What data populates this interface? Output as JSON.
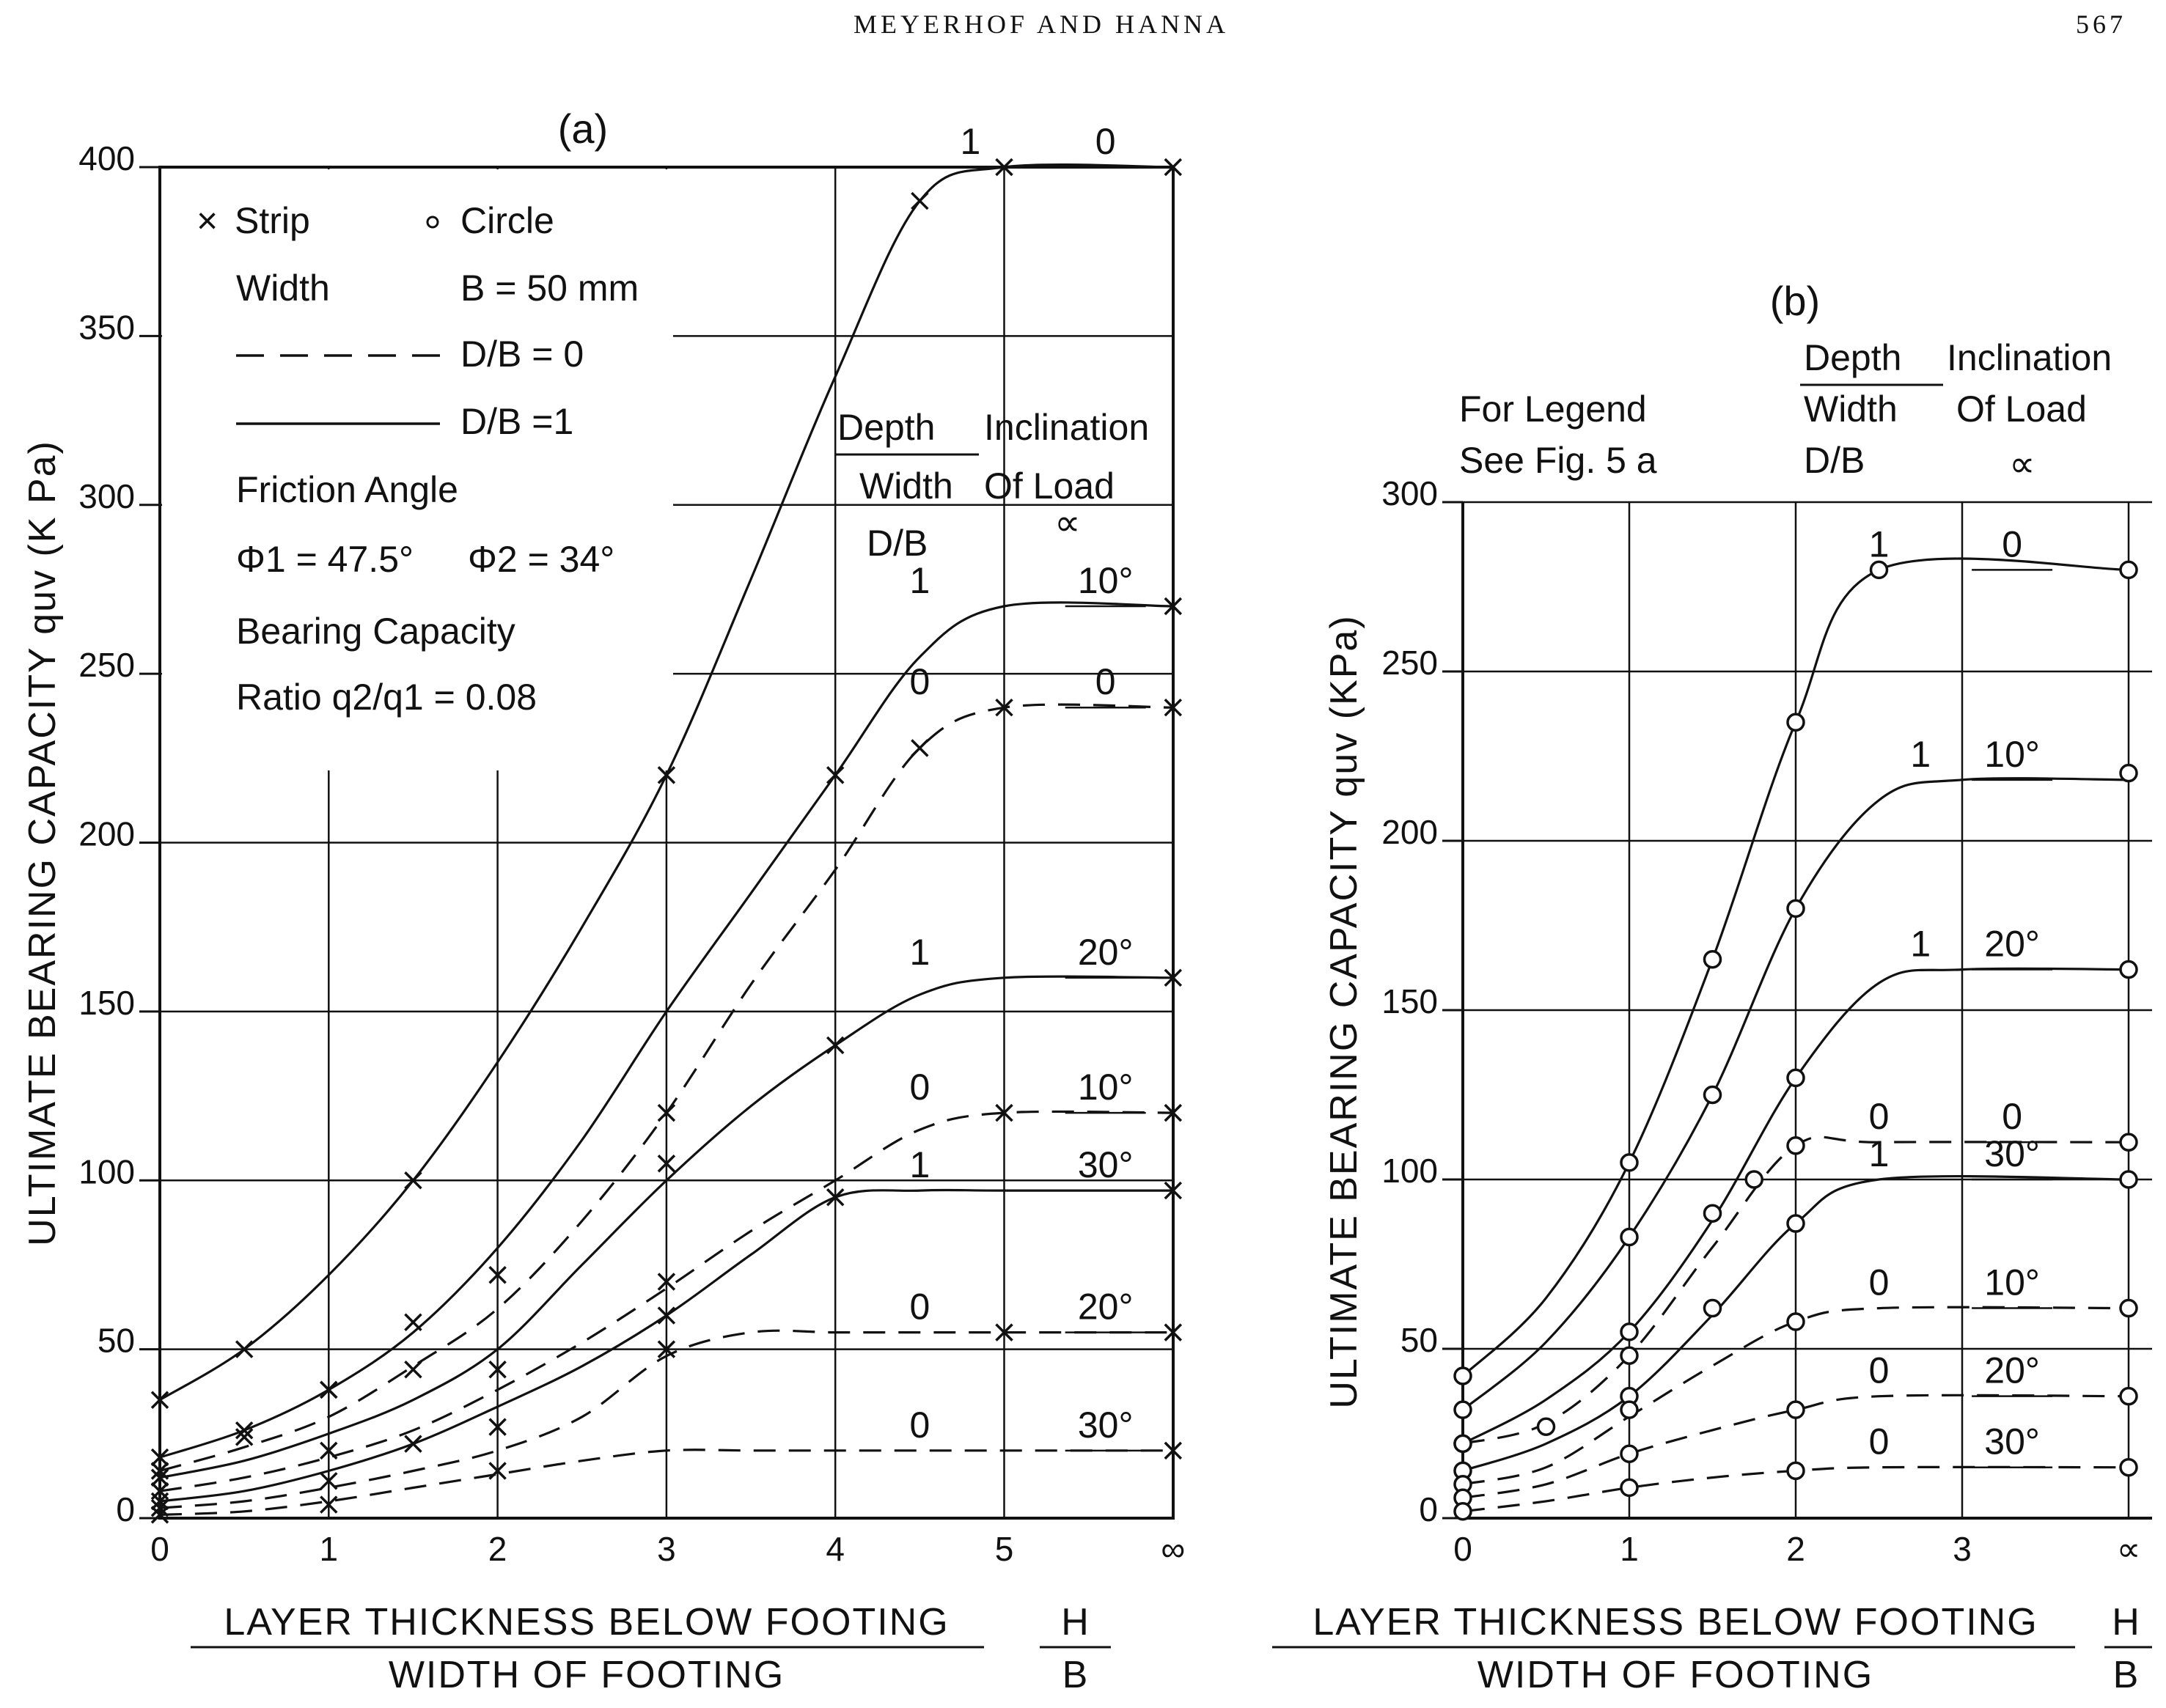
{
  "page_header": {
    "left": "MEYERHOF AND HANNA",
    "page_number": "567"
  },
  "chart_data": [
    {
      "type": "line",
      "panel_label": "(a)",
      "ylabel": "ULTIMATE  BEARING  CAPACITY  quv  (K Pa)",
      "xlabel_numerator": "LAYER  THICKNESS  BELOW  FOOTING",
      "xlabel_denominator": "WIDTH  OF  FOOTING",
      "xlabel_ratio_numerator": "H",
      "xlabel_ratio_denominator": "B",
      "x_ticks": [
        "0",
        "1",
        "2",
        "3",
        "4",
        "5",
        "∞"
      ],
      "y_ticks": [
        "0",
        "50",
        "100",
        "150",
        "200",
        "250",
        "300",
        "350",
        "400"
      ],
      "ylim": [
        0,
        400
      ],
      "legend": {
        "strip": "Strip",
        "circle": "Circle",
        "width_label": "Width",
        "width_value": "B = 50  mm",
        "dashed": "D/B = 0",
        "solid": "D/B =1",
        "friction_title": "Friction   Angle",
        "phi1": "Φ1 = 47.5°",
        "phi2": "Φ2 = 34°",
        "bc_title": "Bearing  Capacity",
        "bc_ratio": "Ratio  q2/q1 = 0.08"
      },
      "column_headers": {
        "depth": "Depth",
        "width": "Width",
        "db": "D/B",
        "inclination": "Inclination",
        "of_load": "Of  Load",
        "alpha": "∝"
      },
      "series": [
        {
          "db": "1",
          "alpha": "0°",
          "label_db": "1",
          "label_alpha": "0",
          "style": "solid",
          "x": [
            0,
            0.5,
            1,
            1.5,
            2,
            2.5,
            3,
            3.5,
            4,
            4.5,
            5,
            6
          ],
          "y": [
            35,
            50,
            72,
            100,
            135,
            175,
            220,
            278,
            338,
            390,
            400,
            400
          ],
          "markers_x": [
            0,
            0.5,
            1.5,
            3,
            4.5,
            5,
            6
          ],
          "markers_y": [
            35,
            50,
            100,
            220,
            390,
            400,
            400
          ]
        },
        {
          "db": "1",
          "alpha": "10°",
          "label_db": "1",
          "label_alpha": "10°",
          "style": "solid",
          "x": [
            0,
            0.5,
            1,
            1.5,
            2,
            2.5,
            3,
            3.5,
            4,
            4.5,
            5,
            6
          ],
          "y": [
            18,
            26,
            38,
            55,
            80,
            112,
            150,
            185,
            220,
            255,
            270,
            270
          ],
          "markers_x": [
            0,
            0.5,
            1,
            1.5,
            2,
            4,
            6
          ],
          "markers_y": [
            18,
            26,
            38,
            58,
            72,
            220,
            270
          ]
        },
        {
          "db": "0",
          "alpha": "0°",
          "label_db": "0",
          "label_alpha": "0",
          "style": "dashed",
          "x": [
            0,
            0.5,
            1,
            1.5,
            2,
            2.5,
            3,
            3.5,
            4,
            4.5,
            5,
            6
          ],
          "y": [
            14,
            21,
            30,
            45,
            62,
            88,
            120,
            158,
            192,
            228,
            240,
            240
          ],
          "markers_x": [
            0,
            0.5,
            1,
            1.5,
            2,
            3,
            4.5,
            5,
            6
          ],
          "markers_y": [
            14,
            24,
            38,
            44,
            44,
            120,
            228,
            240,
            240
          ]
        },
        {
          "db": "1",
          "alpha": "20°",
          "label_db": "1",
          "label_alpha": "20°",
          "style": "solid",
          "x": [
            0,
            0.5,
            1,
            1.5,
            2,
            2.5,
            3,
            3.5,
            4,
            4.5,
            5,
            6
          ],
          "y": [
            12,
            17,
            25,
            35,
            50,
            75,
            100,
            122,
            140,
            155,
            160,
            160
          ],
          "markers_x": [
            0,
            1,
            1.5,
            2,
            3,
            4,
            6
          ],
          "markers_y": [
            12,
            20,
            22,
            27,
            105,
            140,
            160
          ]
        },
        {
          "db": "0",
          "alpha": "10°",
          "label_db": "0",
          "label_alpha": "10°",
          "style": "dashed",
          "x": [
            0,
            0.5,
            1,
            1.5,
            2,
            2.5,
            3,
            3.5,
            4,
            4.5,
            5,
            6
          ],
          "y": [
            8,
            12,
            18,
            26,
            38,
            52,
            68,
            85,
            100,
            115,
            120,
            120
          ],
          "markers_x": [
            0,
            1,
            3,
            5,
            6
          ],
          "markers_y": [
            8,
            11,
            70,
            120,
            120
          ]
        },
        {
          "db": "1",
          "alpha": "30°",
          "label_db": "1",
          "label_alpha": "30°",
          "style": "solid",
          "x": [
            0,
            0.5,
            1,
            1.5,
            2,
            2.5,
            3,
            3.5,
            4,
            4.5,
            5,
            6
          ],
          "y": [
            5,
            8,
            14,
            22,
            33,
            45,
            60,
            78,
            95,
            97,
            97,
            97
          ],
          "markers_x": [
            0,
            1,
            2,
            3,
            4,
            6
          ],
          "markers_y": [
            5,
            4,
            14,
            60,
            95,
            97
          ]
        },
        {
          "db": "0",
          "alpha": "20°",
          "label_db": "0",
          "label_alpha": "20°",
          "style": "dashed",
          "x": [
            0,
            0.5,
            1,
            1.5,
            2,
            2.5,
            3,
            3.5,
            4,
            4.5,
            5,
            6
          ],
          "y": [
            3,
            5,
            9,
            14,
            20,
            30,
            48,
            55,
            55,
            55,
            55,
            55
          ],
          "markers_x": [
            0,
            3,
            5,
            6
          ],
          "markers_y": [
            3,
            50,
            55,
            55
          ]
        },
        {
          "db": "0",
          "alpha": "30°",
          "label_db": "0",
          "label_alpha": "30°",
          "style": "dashed",
          "x": [
            0,
            0.5,
            1,
            1.5,
            2,
            2.5,
            3,
            3.5,
            4,
            4.5,
            5,
            6
          ],
          "y": [
            1,
            2,
            5,
            9,
            13,
            17,
            20,
            20,
            20,
            20,
            20,
            20
          ],
          "markers_x": [
            0,
            6
          ],
          "markers_y": [
            1,
            20
          ]
        }
      ]
    },
    {
      "type": "line",
      "panel_label": "(b)",
      "ylabel": "ULTIMATE  BEARING  CAPACITY  quv  (KPa)",
      "xlabel_numerator": "LAYER  THICKNESS  BELOW  FOOTING",
      "xlabel_denominator": "WIDTH  OF  FOOTING",
      "xlabel_ratio_numerator": "H",
      "xlabel_ratio_denominator": "B",
      "x_ticks": [
        "0",
        "1",
        "2",
        "3",
        "∝"
      ],
      "y_ticks": [
        "0",
        "50",
        "100",
        "150",
        "200",
        "250",
        "300"
      ],
      "ylim": [
        0,
        300
      ],
      "legend_note_1": "For  Legend",
      "legend_note_2": "See  Fig. 5  a",
      "column_headers": {
        "depth": "Depth",
        "width": "Width",
        "db": "D/B",
        "inclination": "Inclination",
        "of_load": "Of  Load",
        "alpha": "∝"
      },
      "series": [
        {
          "db": "1",
          "alpha": "0°",
          "label_db": "1",
          "label_alpha": "0",
          "style": "solid",
          "x": [
            0,
            0.5,
            1,
            1.5,
            2,
            2.5,
            4
          ],
          "y": [
            42,
            65,
            105,
            165,
            235,
            280,
            280
          ],
          "markers_x": [
            0,
            1,
            1.5,
            2,
            2.5,
            4
          ],
          "markers_y": [
            42,
            105,
            165,
            235,
            280,
            280
          ]
        },
        {
          "db": "1",
          "alpha": "10°",
          "label_db": "1",
          "label_alpha": "10°",
          "style": "solid",
          "x": [
            0,
            0.5,
            1,
            1.5,
            2,
            2.5,
            3,
            4
          ],
          "y": [
            32,
            52,
            83,
            125,
            180,
            212,
            218,
            218
          ],
          "markers_x": [
            0,
            1,
            1.5,
            2,
            4
          ],
          "markers_y": [
            32,
            83,
            125,
            180,
            220
          ]
        },
        {
          "db": "1",
          "alpha": "20°",
          "label_db": "1",
          "label_alpha": "20°",
          "style": "solid",
          "x": [
            0,
            0.5,
            1,
            1.5,
            2,
            2.5,
            3,
            4
          ],
          "y": [
            22,
            35,
            55,
            88,
            130,
            158,
            162,
            162
          ],
          "markers_x": [
            0,
            1,
            1.5,
            2,
            4
          ],
          "markers_y": [
            22,
            55,
            90,
            130,
            162
          ]
        },
        {
          "db": "0",
          "alpha": "0°",
          "label_db": "0",
          "label_alpha": "0",
          "style": "dashed",
          "x": [
            0,
            0.5,
            1,
            1.5,
            2,
            2.5,
            4
          ],
          "y": [
            22,
            28,
            48,
            80,
            110,
            111,
            111
          ],
          "markers_x": [
            0,
            0.5,
            1,
            1.75,
            2,
            4
          ],
          "markers_y": [
            22,
            27,
            48,
            100,
            110,
            111
          ]
        },
        {
          "db": "1",
          "alpha": "30°",
          "label_db": "1",
          "label_alpha": "30°",
          "style": "solid",
          "x": [
            0,
            0.5,
            1,
            1.5,
            2,
            2.5,
            4
          ],
          "y": [
            14,
            22,
            36,
            60,
            87,
            100,
            100
          ],
          "markers_x": [
            0,
            1,
            1.5,
            2,
            4
          ],
          "markers_y": [
            14,
            36,
            62,
            87,
            100
          ]
        },
        {
          "db": "0",
          "alpha": "10°",
          "label_db": "0",
          "label_alpha": "10°",
          "style": "dashed",
          "x": [
            0,
            0.5,
            1,
            1.5,
            2,
            2.5,
            4
          ],
          "y": [
            10,
            15,
            30,
            45,
            58,
            62,
            62
          ],
          "markers_x": [
            0,
            1,
            2,
            4
          ],
          "markers_y": [
            10,
            32,
            58,
            62
          ]
        },
        {
          "db": "0",
          "alpha": "20°",
          "label_db": "0",
          "label_alpha": "20°",
          "style": "dashed",
          "x": [
            0,
            0.5,
            1,
            1.5,
            2,
            2.5,
            4
          ],
          "y": [
            6,
            10,
            19,
            26,
            32,
            36,
            36
          ],
          "markers_x": [
            0,
            1,
            2,
            4
          ],
          "markers_y": [
            6,
            19,
            32,
            36
          ]
        },
        {
          "db": "0",
          "alpha": "30°",
          "label_db": "0",
          "label_alpha": "30°",
          "style": "dashed",
          "x": [
            0,
            0.5,
            1,
            1.5,
            2,
            2.5,
            4
          ],
          "y": [
            2,
            5,
            9,
            12,
            14,
            15,
            15
          ],
          "markers_x": [
            0,
            1,
            2,
            4
          ],
          "markers_y": [
            2,
            9,
            14,
            15
          ]
        }
      ]
    }
  ]
}
